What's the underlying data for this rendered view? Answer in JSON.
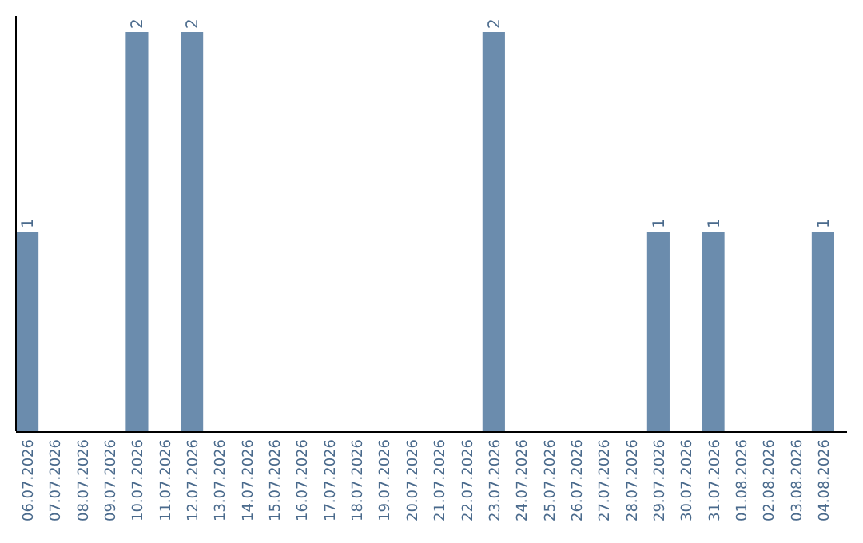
{
  "chart_data": {
    "type": "bar",
    "categories": [
      "06.07.2026",
      "07.07.2026",
      "08.07.2026",
      "09.07.2026",
      "10.07.2026",
      "11.07.2026",
      "12.07.2026",
      "13.07.2026",
      "14.07.2026",
      "15.07.2026",
      "16.07.2026",
      "17.07.2026",
      "18.07.2026",
      "19.07.2026",
      "20.07.2026",
      "21.07.2026",
      "22.07.2026",
      "23.07.2026",
      "24.07.2026",
      "25.07.2026",
      "26.07.2026",
      "27.07.2026",
      "28.07.2026",
      "29.07.2026",
      "30.07.2026",
      "31.07.2026",
      "01.08.2026",
      "02.08.2026",
      "03.08.2026",
      "04.08.2026"
    ],
    "values": [
      1,
      0,
      0,
      0,
      2,
      0,
      2,
      0,
      0,
      0,
      0,
      0,
      0,
      0,
      0,
      0,
      0,
      2,
      0,
      0,
      0,
      0,
      0,
      1,
      0,
      1,
      0,
      0,
      0,
      1
    ],
    "value_labels": [
      "1",
      null,
      null,
      null,
      "2",
      null,
      "2",
      null,
      null,
      null,
      null,
      null,
      null,
      null,
      null,
      null,
      null,
      "2",
      null,
      null,
      null,
      null,
      null,
      "1",
      null,
      "1",
      null,
      null,
      null,
      "1"
    ],
    "color": "#6b8cad"
  }
}
